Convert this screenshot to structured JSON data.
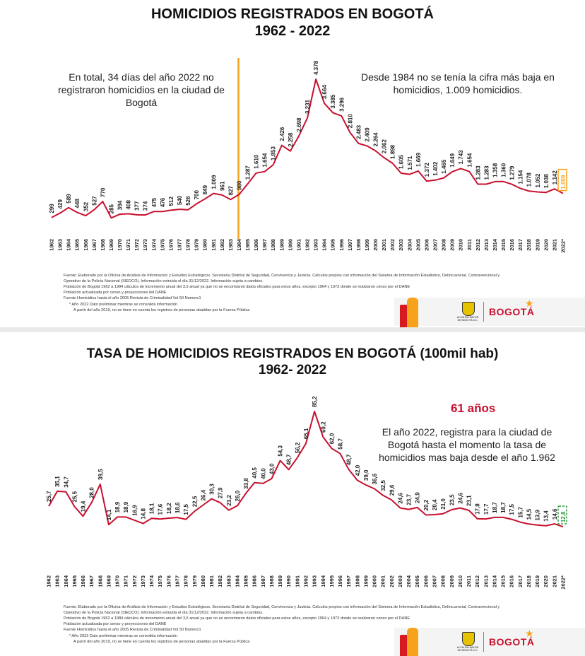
{
  "chart_data": [
    {
      "type": "line",
      "title": "HOMICIDIOS REGISTRADOS EN BOGOTÁ",
      "subtitle": "1962 - 2022",
      "categories": [
        "1962",
        "1963",
        "1964",
        "1965",
        "1966",
        "1967",
        "1968",
        "1969",
        "1970",
        "1971",
        "1972",
        "1973",
        "1974",
        "1975",
        "1976",
        "1977",
        "1978",
        "1979",
        "1980",
        "1981",
        "1982",
        "1983",
        "1984",
        "1985",
        "1986",
        "1987",
        "1988",
        "1989",
        "1990",
        "1991",
        "1992",
        "1993",
        "1994",
        "1995",
        "1996",
        "1997",
        "1998",
        "1999",
        "2000",
        "2001",
        "2002",
        "2003",
        "2004",
        "2005",
        "2006",
        "2007",
        "2008",
        "2009",
        "2010",
        "2011",
        "2012",
        "2013",
        "2014",
        "2015",
        "2016",
        "2017",
        "2018",
        "2019",
        "2020",
        "2021",
        "2022*"
      ],
      "values": [
        299,
        429,
        589,
        448,
        352,
        527,
        770,
        285,
        394,
        408,
        377,
        374,
        475,
        476,
        512,
        540,
        526,
        700,
        849,
        1009,
        961,
        827,
        980,
        1287,
        1610,
        1654,
        1853,
        2426,
        2258,
        2698,
        3231,
        4378,
        3664,
        3385,
        3296,
        2810,
        2483,
        2409,
        2264,
        2062,
        1898,
        1605,
        1571,
        1669,
        1372,
        1402,
        1465,
        1649,
        1743,
        1654,
        1283,
        1283,
        1358,
        1360,
        1279,
        1154,
        1078,
        1052,
        1038,
        1142,
        1009
      ],
      "labels": [
        "299",
        "429",
        "589",
        "448",
        "352",
        "527",
        "770",
        "285",
        "394",
        "408",
        "377",
        "374",
        "475",
        "476",
        "512",
        "540",
        "526",
        "700",
        "849",
        "1.009",
        "961",
        "827",
        "980",
        "1.287",
        "1.610",
        "1.654",
        "1.853",
        "2.426",
        "2.258",
        "2.698",
        "3.231",
        "4.378",
        "3.664",
        "3.385",
        "3.296",
        "2.810",
        "2.483",
        "2.409",
        "2.264",
        "2.062",
        "1.898",
        "1.605",
        "1.571",
        "1.669",
        "1.372",
        "1.402",
        "1.465",
        "1.649",
        "1.743",
        "1.654",
        "1.283",
        "1.283",
        "1.358",
        "1.360",
        "1.279",
        "1.154",
        "1.078",
        "1.052",
        "1.038",
        "1.142",
        "1.009"
      ],
      "highlight_last_color": "#f7a21b",
      "marker_year": "1984",
      "marker_color": "#f7a21b",
      "line_color": "#c8102e",
      "grid": false
    },
    {
      "type": "line",
      "title": "TASA DE HOMICIDIOS REGISTRADOS EN BOGOTÁ (100mil hab)",
      "subtitle": "1962- 2022",
      "categories": [
        "1962",
        "1963",
        "1964",
        "1965",
        "1966",
        "1967",
        "1968",
        "1969",
        "1970",
        "1971",
        "1972",
        "1973",
        "1974",
        "1975",
        "1976",
        "1977",
        "1978",
        "1979",
        "1980",
        "1981",
        "1982",
        "1983",
        "1984",
        "1985",
        "1986",
        "1987",
        "1988",
        "1989",
        "1990",
        "1991",
        "1992",
        "1993",
        "1994",
        "1995",
        "1996",
        "1997",
        "1998",
        "1999",
        "2000",
        "2001",
        "2002",
        "2003",
        "2004",
        "2005",
        "2006",
        "2007",
        "2008",
        "2009",
        "2010",
        "2011",
        "2012",
        "2013",
        "2014",
        "2015",
        "2016",
        "2017",
        "2018",
        "2019",
        "2020",
        "2021",
        "2022*"
      ],
      "values": [
        25.7,
        35.1,
        34.7,
        25.5,
        19.4,
        28.0,
        39.5,
        14.1,
        18.9,
        18.9,
        16.9,
        14.8,
        18.1,
        17.6,
        18.2,
        18.6,
        17.5,
        22.5,
        26.4,
        30.3,
        27.9,
        23.2,
        26.0,
        33.8,
        40.5,
        40.0,
        43.0,
        54.3,
        48.7,
        56.2,
        65.1,
        85.2,
        69.2,
        62.0,
        58.7,
        48.7,
        42.0,
        39.0,
        36.6,
        32.5,
        29.6,
        24.6,
        23.7,
        24.9,
        20.2,
        20.4,
        21.0,
        23.5,
        24.6,
        23.1,
        17.8,
        17.7,
        18.7,
        18.7,
        17.5,
        15.7,
        14.5,
        13.9,
        13.4,
        14.6,
        12.8
      ],
      "labels": [
        "25,7",
        "35,1",
        "34,7",
        "25,5",
        "19,4",
        "28,0",
        "39,5",
        "14,1",
        "18,9",
        "18,9",
        "16,9",
        "14,8",
        "18,1",
        "17,6",
        "18,2",
        "18,6",
        "17,5",
        "22,5",
        "26,4",
        "30,3",
        "27,9",
        "23,2",
        "26,0",
        "33,8",
        "40,5",
        "40,0",
        "43,0",
        "54,3",
        "48,7",
        "56,2",
        "65,1",
        "85,2",
        "69,2",
        "62,0",
        "58,7",
        "48,7",
        "42,0",
        "39,0",
        "36,6",
        "32,5",
        "29,6",
        "24,6",
        "23,7",
        "24,9",
        "20,2",
        "20,4",
        "21,0",
        "23,5",
        "24,6",
        "23,1",
        "17,8",
        "17,7",
        "18,7",
        "18,7",
        "17,5",
        "15,7",
        "14,5",
        "13,9",
        "13,4",
        "14,6",
        "12,8"
      ],
      "highlight_last_color": "#2e9e3f",
      "line_color": "#c8102e",
      "grid": false
    }
  ],
  "slide1": {
    "title": "HOMICIDIOS REGISTRADOS EN BOGOTÁ",
    "subtitle": "1962 - 2022",
    "note_left": "En total, 34 días del año 2022 no registraron homicidios en la ciudad de Bogotá",
    "note_right": "Desde 1984 no se tenía la cifra más baja en homicidios, 1.009 homicidios."
  },
  "slide2": {
    "title": "TASA DE HOMICIDIOS REGISTRADOS EN BOGOTÁ (100mil hab)",
    "subtitle": "1962- 2022",
    "highlight": "61 años",
    "note_right": "El año 2022, registra para la ciudad de Bogotá hasta el momento la tasa de homicidios mas baja desde el año 1.962"
  },
  "footer": {
    "line1": "Fuente: Elaborado por la Oficina de Análisis de Información y Estudios Estratégicos. Secretaría Distrital de Seguridad, Convivencia y Justicia. Cálculos propios con información del Sistema de Información Estadístico, Delincuencial, Contravencional y Operativo de la Policía Nacional  (SIEDCO). Información extraída el día  31/12/2022. Información sujeta a cambios.",
    "line2": "Población de Bogotá 1962 a 1984 cálculos de incremento anual del 3,5 anual ya que no se encontraron datos oficiales para estos años, excepto 1964 y 1973 donde se realizaron censo por el DANE",
    "line3": "Población actualizada por censo y proyecciones del DANE",
    "line4": "Fuente Homicidios hasta el año 2005 Revista de Criminalidad Vol 50 Numero1",
    "line5": "* Año 2022 Dato preliminar mientras se consolida información",
    "line6": "A partir del año 2019, no se tiene en cuenta los registros de personas abatidas por la Fuerza Pública"
  },
  "logos": {
    "brand": "BOGOTÁ",
    "alcaldia": "ALCALDÍA MAYOR DE BOGOTÁ D.C."
  }
}
